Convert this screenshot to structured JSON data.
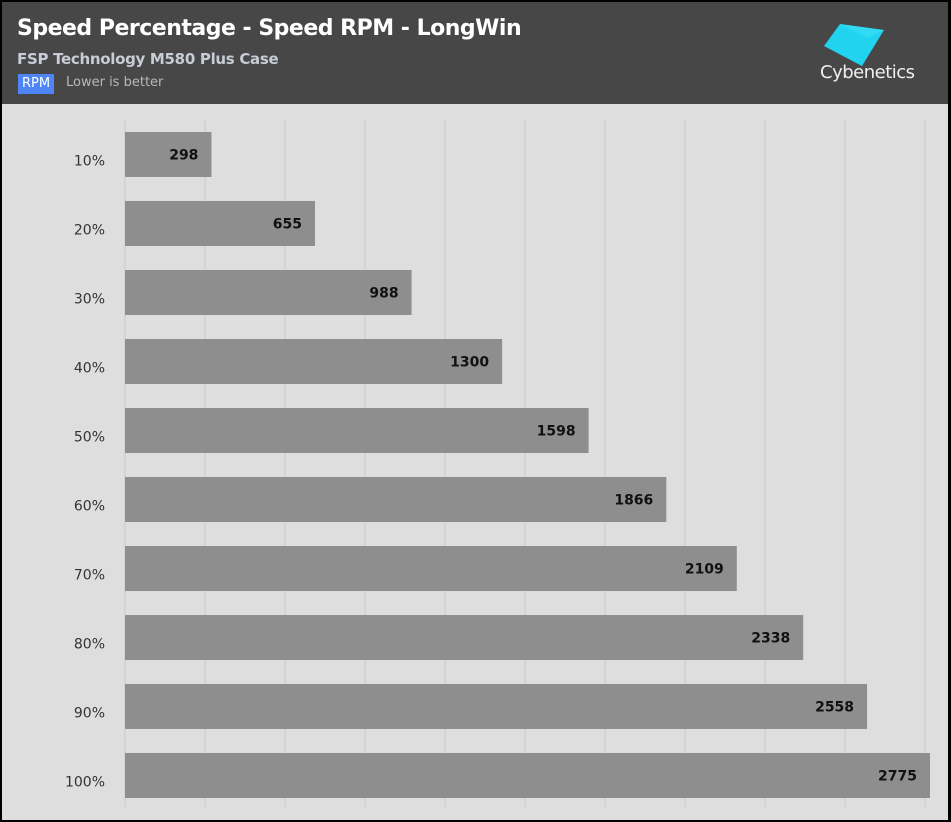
{
  "header": {
    "title": "Speed Percentage - Speed RPM - LongWin",
    "subtitle": "FSP Technology M580 Plus Case",
    "unit_badge": "RPM",
    "note": "Lower is better",
    "logo": "Cybenetics"
  },
  "colors": {
    "header_bg": "#474747",
    "plot_bg": "#dedede",
    "bar": "#8e8e8e",
    "badge": "#4f86f7",
    "logo_cyan": "#22d3f0"
  },
  "chart_data": {
    "type": "bar",
    "orientation": "horizontal",
    "title": "Speed Percentage - Speed RPM - LongWin",
    "subtitle": "FSP Technology M580 Plus Case",
    "categories": [
      "10%",
      "20%",
      "30%",
      "40%",
      "50%",
      "60%",
      "70%",
      "80%",
      "90%",
      "100%"
    ],
    "values": [
      298,
      655,
      988,
      1300,
      1598,
      1866,
      2109,
      2338,
      2558,
      2775
    ],
    "unit": "RPM",
    "xlim": [
      0,
      2775
    ],
    "grid": true,
    "legend": "none"
  }
}
